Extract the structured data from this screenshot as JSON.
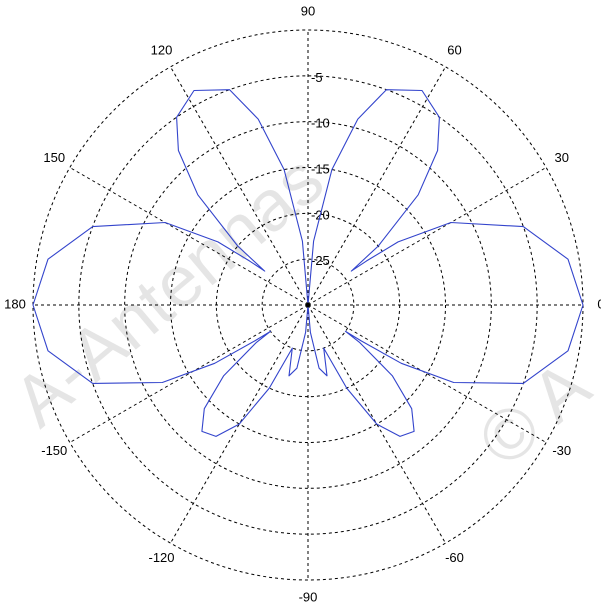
{
  "chart_data": {
    "type": "polar-line",
    "title": "",
    "angular_unit": "degrees",
    "angle_ticks": [
      {
        "deg": 0,
        "label": "0"
      },
      {
        "deg": 30,
        "label": "30"
      },
      {
        "deg": 60,
        "label": "60"
      },
      {
        "deg": 90,
        "label": "90"
      },
      {
        "deg": 120,
        "label": "120"
      },
      {
        "deg": 150,
        "label": "150"
      },
      {
        "deg": 180,
        "label": "180"
      },
      {
        "deg": -150,
        "label": "-150"
      },
      {
        "deg": -120,
        "label": "-120"
      },
      {
        "deg": -90,
        "label": "-90"
      },
      {
        "deg": -60,
        "label": "-60"
      },
      {
        "deg": -30,
        "label": "-30"
      }
    ],
    "radial_range": [
      -30,
      0
    ],
    "radial_ticks": [
      {
        "value": -5,
        "label": "-5"
      },
      {
        "value": -10,
        "label": "-10"
      },
      {
        "value": -15,
        "label": "-15"
      },
      {
        "value": -20,
        "label": "-20"
      },
      {
        "value": -25,
        "label": "-25"
      }
    ],
    "grid": true,
    "series": [
      {
        "color": "#3344cc",
        "points": [
          [
            0,
            0
          ],
          [
            10,
            -1.2
          ],
          [
            20,
            -5
          ],
          [
            30,
            -12
          ],
          [
            35,
            -18
          ],
          [
            37,
            -22
          ],
          [
            38,
            -24
          ],
          [
            40,
            -20
          ],
          [
            45,
            -13
          ],
          [
            50,
            -8
          ],
          [
            55,
            -5
          ],
          [
            62,
            -3.5
          ],
          [
            70,
            -5
          ],
          [
            75,
            -9
          ],
          [
            80,
            -15
          ],
          [
            85,
            -23
          ],
          [
            90,
            -30
          ],
          [
            95,
            -23
          ],
          [
            100,
            -15
          ],
          [
            105,
            -9
          ],
          [
            110,
            -5
          ],
          [
            118,
            -3.5
          ],
          [
            125,
            -5
          ],
          [
            130,
            -8
          ],
          [
            135,
            -13
          ],
          [
            140,
            -20
          ],
          [
            142,
            -24
          ],
          [
            143,
            -22
          ],
          [
            145,
            -18
          ],
          [
            150,
            -12
          ],
          [
            160,
            -5
          ],
          [
            170,
            -1.2
          ],
          [
            180,
            0
          ],
          [
            190,
            -1.2
          ],
          [
            200,
            -5
          ],
          [
            208,
            -12
          ],
          [
            212,
            -18
          ],
          [
            214,
            -23
          ],
          [
            215,
            -25
          ],
          [
            216,
            -23
          ],
          [
            220,
            -18
          ],
          [
            225,
            -14
          ],
          [
            230,
            -12
          ],
          [
            235,
            -12.5
          ],
          [
            240,
            -15
          ],
          [
            245,
            -20
          ],
          [
            250,
            -25
          ],
          [
            255,
            -22
          ],
          [
            260,
            -23
          ],
          [
            265,
            -27
          ],
          [
            270,
            -30
          ],
          [
            275,
            -27
          ],
          [
            280,
            -23
          ],
          [
            285,
            -22
          ],
          [
            290,
            -25
          ],
          [
            295,
            -20
          ],
          [
            300,
            -15
          ],
          [
            305,
            -12.5
          ],
          [
            310,
            -12
          ],
          [
            315,
            -14
          ],
          [
            320,
            -18
          ],
          [
            324,
            -23
          ],
          [
            325,
            -25
          ],
          [
            326,
            -23
          ],
          [
            328,
            -18
          ],
          [
            332,
            -12
          ],
          [
            340,
            -5
          ],
          [
            350,
            -1.2
          ],
          [
            360,
            0
          ]
        ]
      }
    ]
  },
  "watermark": {
    "text_left": "A-Antennas",
    "text_right": "© A"
  }
}
